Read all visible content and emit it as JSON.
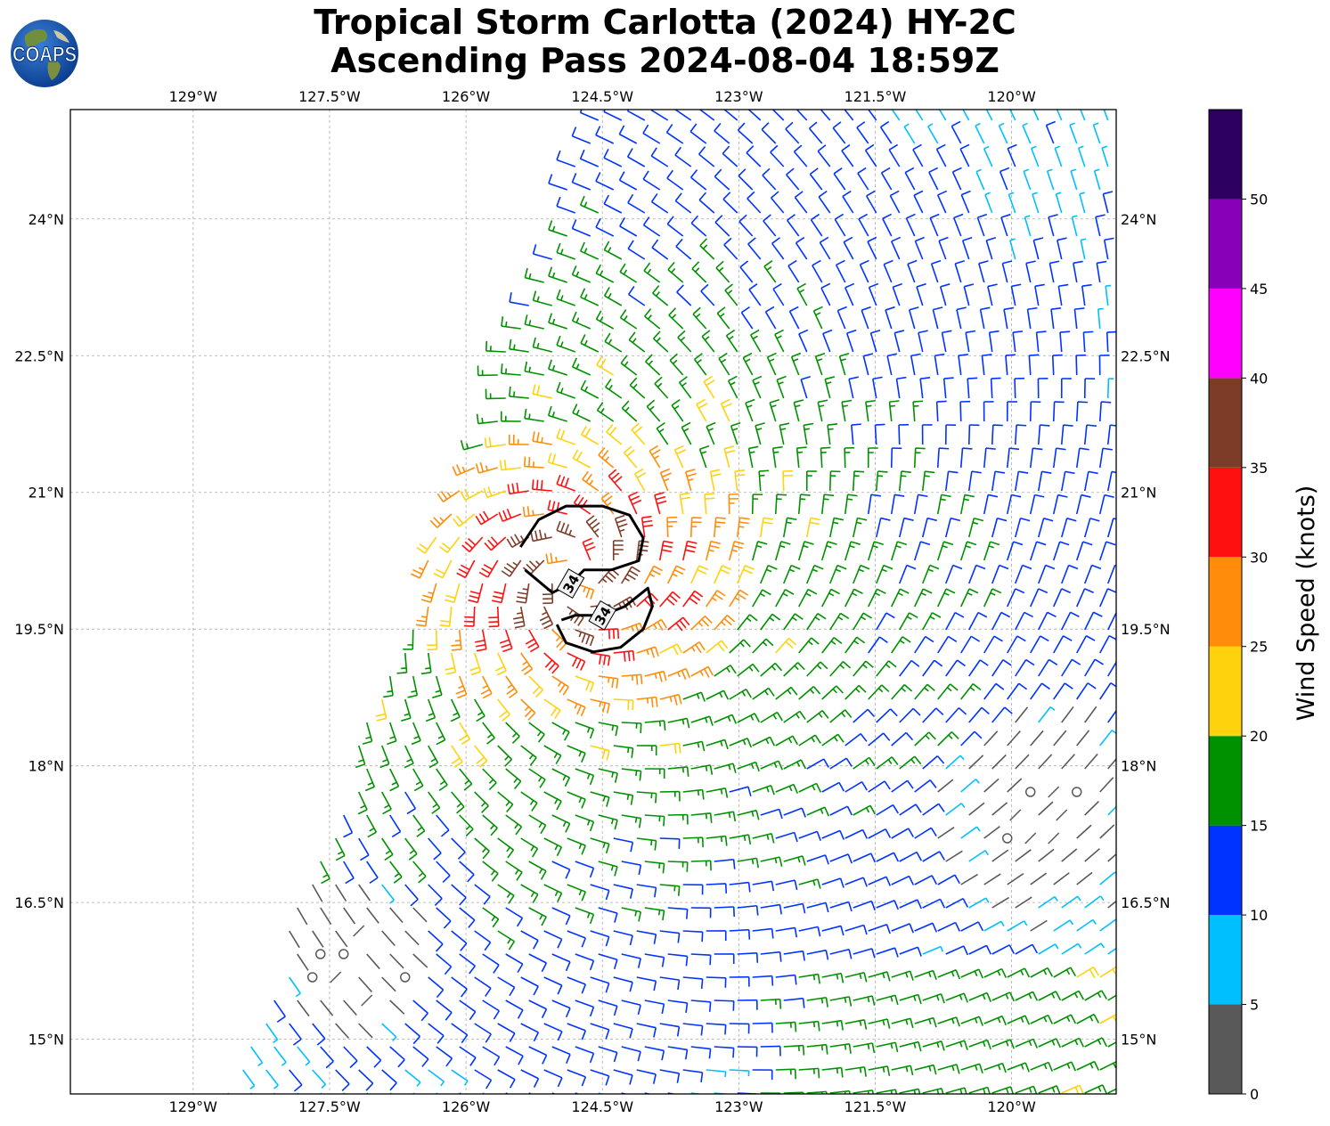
{
  "title": {
    "line1": "Tropical Storm Carlotta (2024) HY-2C",
    "line2": "Ascending Pass 2024-08-04 18:59Z"
  },
  "logo": {
    "text": "COAPS",
    "icon": "earth-globe-icon"
  },
  "map": {
    "lon_range": [
      -130.35,
      -118.85
    ],
    "lat_range": [
      14.4,
      25.2
    ],
    "lon_ticks": [
      {
        "value": -129,
        "label": "129°W"
      },
      {
        "value": -127.5,
        "label": "127.5°W"
      },
      {
        "value": -126,
        "label": "126°W"
      },
      {
        "value": -124.5,
        "label": "124.5°W"
      },
      {
        "value": -123,
        "label": "123°W"
      },
      {
        "value": -121.5,
        "label": "121.5°W"
      },
      {
        "value": -120,
        "label": "120°W"
      }
    ],
    "lat_ticks": [
      {
        "value": 24,
        "label": "24°N"
      },
      {
        "value": 22.5,
        "label": "22.5°N"
      },
      {
        "value": 21,
        "label": "21°N"
      },
      {
        "value": 19.5,
        "label": "19.5°N"
      },
      {
        "value": 18,
        "label": "18°N"
      },
      {
        "value": 16.5,
        "label": "16.5°N"
      },
      {
        "value": 15,
        "label": "15°N"
      }
    ],
    "gridlines": true,
    "storm_center_approx": {
      "lon": -124.8,
      "lat": 20.1
    },
    "contour_34kt": {
      "label": "34",
      "regions": [
        [
          [
            -125.4,
            20.4
          ],
          [
            -125.2,
            20.7
          ],
          [
            -124.9,
            20.85
          ],
          [
            -124.5,
            20.85
          ],
          [
            -124.2,
            20.75
          ],
          [
            -124.05,
            20.5
          ],
          [
            -124.1,
            20.25
          ],
          [
            -124.4,
            20.15
          ],
          [
            -124.7,
            20.15
          ],
          [
            -124.85,
            20.0
          ],
          [
            -125.05,
            19.9
          ],
          [
            -125.35,
            20.15
          ]
        ],
        [
          [
            -125.0,
            19.55
          ],
          [
            -124.9,
            19.35
          ],
          [
            -124.6,
            19.25
          ],
          [
            -124.3,
            19.3
          ],
          [
            -124.05,
            19.5
          ],
          [
            -123.95,
            19.75
          ],
          [
            -124.0,
            19.95
          ],
          [
            -124.25,
            19.75
          ],
          [
            -124.5,
            19.65
          ],
          [
            -124.8,
            19.65
          ],
          [
            -124.95,
            19.6
          ]
        ]
      ]
    }
  },
  "colorbar": {
    "label": "Wind Speed (knots)",
    "ticks": [
      0,
      5,
      10,
      15,
      20,
      25,
      30,
      35,
      40,
      45,
      50
    ],
    "bins": [
      {
        "min": 0,
        "max": 5,
        "color": "#595959"
      },
      {
        "min": 5,
        "max": 10,
        "color": "#00bfff"
      },
      {
        "min": 10,
        "max": 15,
        "color": "#0033ff"
      },
      {
        "min": 15,
        "max": 20,
        "color": "#009100"
      },
      {
        "min": 20,
        "max": 25,
        "color": "#ffd20e"
      },
      {
        "min": 25,
        "max": 30,
        "color": "#ff8c0a"
      },
      {
        "min": 30,
        "max": 35,
        "color": "#ff1010"
      },
      {
        "min": 35,
        "max": 40,
        "color": "#7d3c28"
      },
      {
        "min": 40,
        "max": 45,
        "color": "#ff00ff"
      },
      {
        "min": 45,
        "max": 50,
        "color": "#8800b8"
      },
      {
        "min": 50,
        "max": 55,
        "color": "#2d0060"
      }
    ]
  }
}
